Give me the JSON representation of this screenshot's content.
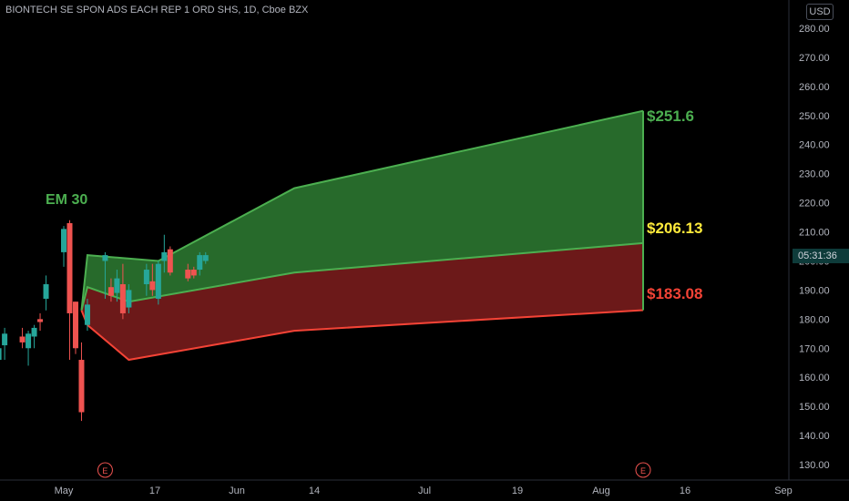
{
  "header": {
    "title": "BIONTECH SE SPON ADS EACH REP 1 ORD SHS, 1D, Cboe BZX",
    "currency": "USD"
  },
  "annotations": {
    "em_label": "EM 30",
    "upper_label": "$251.6",
    "mid_label": "$206.13",
    "lower_label": "$183.08",
    "countdown": "05:31:36",
    "event_marker": "E"
  },
  "colors": {
    "bull": "#26a69a",
    "bear": "#ef5350",
    "upper_fill": "#2e7d32",
    "lower_fill": "#7f1d1d",
    "upper_line": "#4caf50",
    "lower_line": "#f44336",
    "mid_label_color": "#ffeb3b"
  },
  "chart_data": {
    "type": "candlestick",
    "x_axis": [
      "May",
      "17",
      "Jun",
      "14",
      "Jul",
      "19",
      "Aug",
      "16",
      "Sep"
    ],
    "y_axis": {
      "ticks": [
        130,
        140,
        150,
        160,
        170,
        180,
        190,
        200,
        210,
        220,
        230,
        240,
        250,
        260,
        270,
        280
      ],
      "ylim": [
        125,
        284
      ],
      "tick_labels": [
        "130.00",
        "140.00",
        "150.00",
        "160.00",
        "170.00",
        "180.00",
        "190.00",
        "200.00",
        "210.00",
        "220.00",
        "230.00",
        "240.00",
        "250.00",
        "260.00",
        "270.00",
        "280.00"
      ]
    },
    "candles": [
      {
        "date": "2021-04-21",
        "open": 157,
        "high": 168,
        "low": 152,
        "close": 164
      },
      {
        "date": "2021-04-22",
        "open": 166,
        "high": 173,
        "low": 162,
        "close": 170
      },
      {
        "date": "2021-04-23",
        "open": 171,
        "high": 177,
        "low": 166,
        "close": 175
      },
      {
        "date": "2021-04-26",
        "open": 174,
        "high": 177,
        "low": 170,
        "close": 172
      },
      {
        "date": "2021-04-27",
        "open": 170,
        "high": 176,
        "low": 164,
        "close": 175
      },
      {
        "date": "2021-04-28",
        "open": 174,
        "high": 178,
        "low": 170,
        "close": 177
      },
      {
        "date": "2021-04-29",
        "open": 180,
        "high": 182,
        "low": 176,
        "close": 179
      },
      {
        "date": "2021-04-30",
        "open": 187,
        "high": 195,
        "low": 183,
        "close": 192
      },
      {
        "date": "2021-05-03",
        "open": 203,
        "high": 212,
        "low": 198,
        "close": 211
      },
      {
        "date": "2021-05-04",
        "open": 213,
        "high": 214,
        "low": 166,
        "close": 182
      },
      {
        "date": "2021-05-05",
        "open": 186,
        "high": 186,
        "low": 168,
        "close": 170
      },
      {
        "date": "2021-05-06",
        "open": 166,
        "high": 172,
        "low": 145,
        "close": 148
      },
      {
        "date": "2021-05-07",
        "open": 178,
        "high": 187,
        "low": 176,
        "close": 185
      },
      {
        "date": "2021-05-10",
        "open": 200,
        "high": 203,
        "low": 187,
        "close": 202
      },
      {
        "date": "2021-05-11",
        "open": 191,
        "high": 194,
        "low": 186,
        "close": 188
      },
      {
        "date": "2021-05-12",
        "open": 189,
        "high": 197,
        "low": 186,
        "close": 194
      },
      {
        "date": "2021-05-13",
        "open": 192,
        "high": 199,
        "low": 180,
        "close": 182
      },
      {
        "date": "2021-05-14",
        "open": 184,
        "high": 192,
        "low": 182,
        "close": 190
      },
      {
        "date": "2021-05-17",
        "open": 192,
        "high": 199,
        "low": 188,
        "close": 197
      },
      {
        "date": "2021-05-18",
        "open": 193,
        "high": 199,
        "low": 188,
        "close": 190
      },
      {
        "date": "2021-05-19",
        "open": 187,
        "high": 200,
        "low": 185,
        "close": 199
      },
      {
        "date": "2021-05-20",
        "open": 200,
        "high": 209,
        "low": 196,
        "close": 203
      },
      {
        "date": "2021-05-21",
        "open": 204,
        "high": 205,
        "low": 195,
        "close": 196
      },
      {
        "date": "2021-05-24",
        "open": 197,
        "high": 199,
        "low": 193,
        "close": 194
      },
      {
        "date": "2021-05-25",
        "open": 197,
        "high": 198,
        "low": 194,
        "close": 195
      },
      {
        "date": "2021-05-26",
        "open": 197,
        "high": 203,
        "low": 195,
        "close": 202
      },
      {
        "date": "2021-05-27",
        "open": 200,
        "high": 203,
        "low": 199,
        "close": 202
      }
    ],
    "expected_move": {
      "upper": [
        {
          "date": "2021-05-06",
          "value": 183
        },
        {
          "date": "2021-05-07",
          "value": 202
        },
        {
          "date": "2021-05-19",
          "value": 200
        },
        {
          "date": "2021-06-11",
          "value": 225
        },
        {
          "date": "2021-08-09",
          "value": 251.6
        }
      ],
      "mid": [
        {
          "date": "2021-05-06",
          "value": 183
        },
        {
          "date": "2021-05-07",
          "value": 191
        },
        {
          "date": "2021-05-14",
          "value": 186
        },
        {
          "date": "2021-06-11",
          "value": 196
        },
        {
          "date": "2021-08-09",
          "value": 206.13
        }
      ],
      "lower": [
        {
          "date": "2021-05-06",
          "value": 183
        },
        {
          "date": "2021-05-07",
          "value": 178
        },
        {
          "date": "2021-05-14",
          "value": 166
        },
        {
          "date": "2021-06-11",
          "value": 176
        },
        {
          "date": "2021-08-09",
          "value": 183.08
        }
      ]
    },
    "earnings_markers": [
      "2021-05-10",
      "2021-08-09"
    ],
    "current_price": 203
  }
}
